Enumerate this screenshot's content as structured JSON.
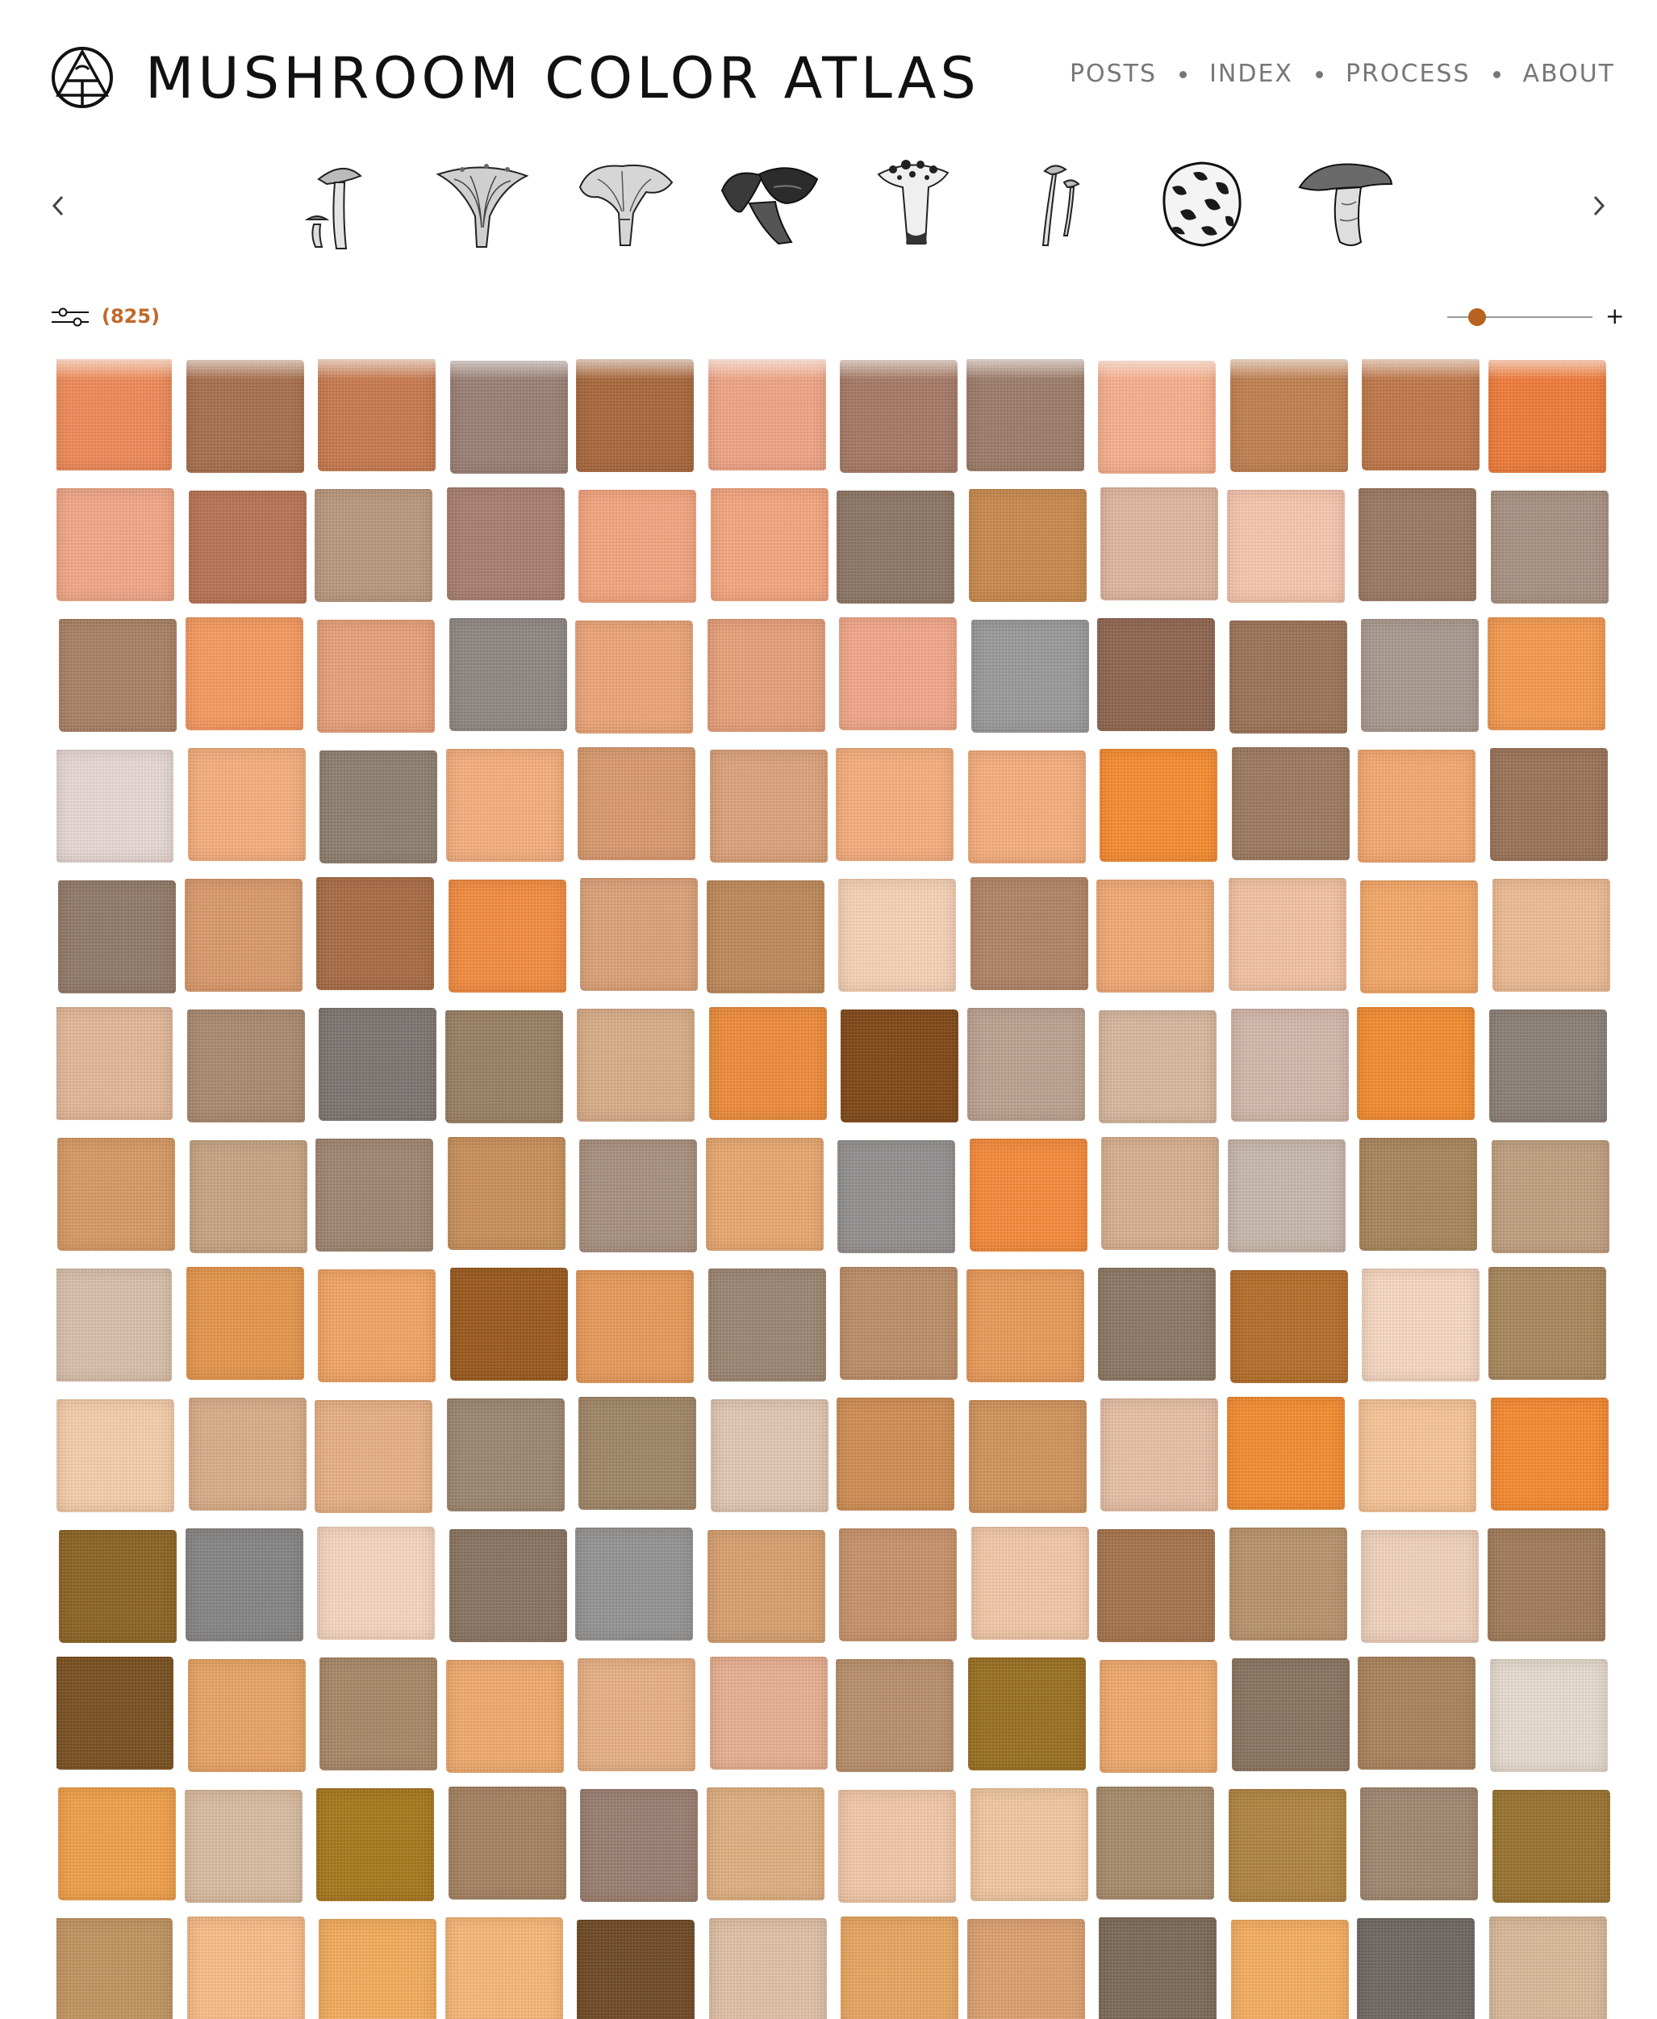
{
  "header": {
    "title": "MUSHROOM COLOR ATLAS",
    "logo_icon": "atlas-triangle-circle-icon",
    "nav": [
      {
        "label": "POSTS"
      },
      {
        "label": "INDEX"
      },
      {
        "label": "PROCESS"
      },
      {
        "label": "ABOUT"
      }
    ]
  },
  "carousel": {
    "prev_icon": "chevron-left-icon",
    "next_icon": "chevron-right-icon",
    "mushrooms": [
      {
        "icon": "slender-mushroom-illustration-icon"
      },
      {
        "icon": "chanterelle-illustration-icon"
      },
      {
        "icon": "frilly-cap-mushroom-illustration-icon"
      },
      {
        "icon": "dark-cluster-mushroom-illustration-icon"
      },
      {
        "icon": "spotted-cap-mushroom-illustration-icon"
      },
      {
        "icon": "thin-stem-mushroom-illustration-icon"
      },
      {
        "icon": "puffball-illustration-icon"
      },
      {
        "icon": "bolete-illustration-icon"
      }
    ]
  },
  "toolbar": {
    "filter_icon": "filter-sliders-icon",
    "count": "(825)",
    "zoom_level": 0.15,
    "zoom_plus": "+"
  },
  "swatches": {
    "columns": 12,
    "colors": [
      "#ee8a58",
      "#a8704d",
      "#c87a50",
      "#9a8075",
      "#a8683c",
      "#f0a585",
      "#a67a66",
      "#9c7d69",
      "#f8b08c",
      "#c08050",
      "#c0784a",
      "#f07c3a",
      "#f2a888",
      "#b87455",
      "#b9987e",
      "#a88070",
      "#f5a57f",
      "#f5a67f",
      "#8e7766",
      "#c98a4c",
      "#dfb8a0",
      "#f8c6b0",
      "#9a7a64",
      "#a89282",
      "#a88265",
      "#f69a60",
      "#e8a07a",
      "#8e8884",
      "#eda578",
      "#e8a07a",
      "#f2a88a",
      "#9a9a9a",
      "#8f6650",
      "#9c7458",
      "#a89a90",
      "#f59a50",
      "#e6d9d4",
      "#f6ae7e",
      "#8e8070",
      "#f6ae7e",
      "#d99a6e",
      "#dca27a",
      "#f6ae7e",
      "#f6ae7e",
      "#f78c30",
      "#9c7a60",
      "#f5a870",
      "#9a7458",
      "#927a68",
      "#d99a6c",
      "#a86c44",
      "#f38c40",
      "#dca278",
      "#bf8a5a",
      "#f6d2b6",
      "#b08466",
      "#f2aa76",
      "#f4c2a2",
      "#f5a868",
      "#eebc94",
      "#e2b89a",
      "#a98a70",
      "#7c7672",
      "#9a8064",
      "#d8ae88",
      "#ee8c3a",
      "#804818",
      "#bca290",
      "#d6b8a0",
      "#d2b8aa",
      "#f58c30",
      "#8a8078",
      "#d69a64",
      "#c6a484",
      "#a08670",
      "#c8905a",
      "#a89080",
      "#e8a870",
      "#939090",
      "#f68a3a",
      "#d8b090",
      "#c8b8ac",
      "#a8865c",
      "#c0a080",
      "#d8c0aa",
      "#e6964c",
      "#f2a464",
      "#9a5a1c",
      "#e89a58",
      "#9c8672",
      "#bc8e68",
      "#ea9a58",
      "#8c7864",
      "#b56e2a",
      "#f6d8c2",
      "#a8885c",
      "#f4ceaa",
      "#d8ae88",
      "#e8b084",
      "#9c8670",
      "#a08668",
      "#e0c8b4",
      "#d08e54",
      "#d0945c",
      "#e6c0a6",
      "#f58c30",
      "#f8c496",
      "#f68a30",
      "#8c6424",
      "#858585",
      "#f6d6c0",
      "#8a7462",
      "#949494",
      "#d8a070",
      "#c8926a",
      "#f2c8a8",
      "#a6744c",
      "#b8946c",
      "#efd2bc",
      "#a07c5a",
      "#7a5020",
      "#e8a464",
      "#a88868",
      "#f0aa6c",
      "#e8b084",
      "#e8b090",
      "#b8906c",
      "#9a7020",
      "#f0aa6c",
      "#8a7460",
      "#a8845c",
      "#e6dcd0",
      "#f0a048",
      "#d8bca0",
      "#a8781c",
      "#a48262",
      "#9a7e70",
      "#e0b080",
      "#f2c8a8",
      "#f0c8a0",
      "#a88c6c",
      "#b08440",
      "#a08870",
      "#9a7430",
      "#c09460",
      "#f8bc88",
      "#f2ac5c",
      "#f6b878",
      "#6e4a24",
      "#e0c0a6",
      "#e8a660",
      "#dca070",
      "#7c6a58",
      "#f5ae60",
      "#6e6864",
      "#d8ba9a"
    ]
  }
}
